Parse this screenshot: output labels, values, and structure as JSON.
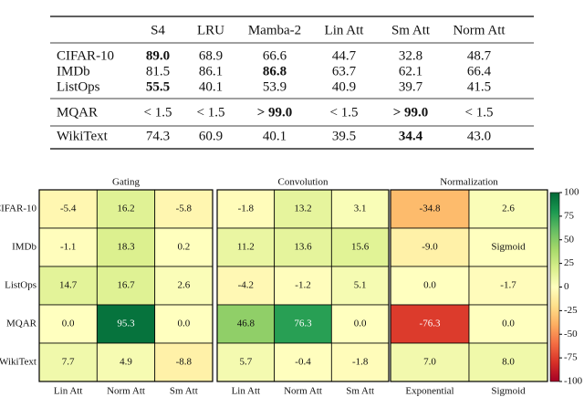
{
  "table": {
    "header": [
      "S4",
      "LRU",
      "Mamba-2",
      "Lin Att",
      "Sm Att",
      "Norm Att"
    ],
    "rows": [
      {
        "label": "CIFAR-10",
        "cells": [
          "89.0",
          "68.9",
          "66.6",
          "44.7",
          "32.8",
          "48.7"
        ]
      },
      {
        "label": "IMDb",
        "cells": [
          "81.5",
          "86.1",
          "86.8",
          "63.7",
          "62.1",
          "66.4"
        ]
      },
      {
        "label": "ListOps",
        "cells": [
          "55.5",
          "40.1",
          "53.9",
          "40.9",
          "39.7",
          "41.5"
        ]
      },
      {
        "label": "MQAR",
        "cells": [
          "< 1.5",
          "< 1.5",
          "> 99.0",
          "< 1.5",
          "> 99.0",
          "< 1.5"
        ]
      },
      {
        "label": "WikiText",
        "cells": [
          "74.3",
          "60.9",
          "40.1",
          "39.5",
          "34.4",
          "43.0"
        ]
      }
    ]
  },
  "chart_data": [
    {
      "type": "heatmap",
      "title": "Gating",
      "y_categories": [
        "CIFAR-10",
        "IMDb",
        "ListOps",
        "MQAR",
        "WikiText"
      ],
      "categories": [
        "Lin Att",
        "Norm Att",
        "Sm Att"
      ],
      "values": [
        [
          -5.4,
          16.2,
          -5.8
        ],
        [
          -1.1,
          18.3,
          0.2
        ],
        [
          14.7,
          16.7,
          2.6
        ],
        [
          0,
          95.3,
          0
        ],
        [
          7.7,
          4.9,
          -8.8
        ]
      ],
      "value_labels": [
        [
          "-5.4",
          "16.2",
          "-5.8"
        ],
        [
          "-1.1",
          "18.3",
          "0.2"
        ],
        [
          "14.7",
          "16.7",
          "2.6"
        ],
        [
          "0.0",
          "95.3",
          "0.0"
        ],
        [
          "7.7",
          "4.9",
          "-8.8"
        ]
      ]
    },
    {
      "type": "heatmap",
      "title": "Convolution",
      "categories": [
        "Lin Att",
        "Norm Att",
        "Sm Att"
      ],
      "values": [
        [
          -1.8,
          13.2,
          3.1
        ],
        [
          11.2,
          13.6,
          15.6
        ],
        [
          -4.2,
          -1.2,
          5.1
        ],
        [
          46.8,
          76.3,
          0
        ],
        [
          5.7,
          -0.4,
          -1.8
        ]
      ],
      "value_labels": [
        [
          "-1.8",
          "13.2",
          "3.1"
        ],
        [
          "11.2",
          "13.6",
          "15.6"
        ],
        [
          "-4.2",
          "-1.2",
          "5.1"
        ],
        [
          "46.8",
          "76.3",
          "0.0"
        ],
        [
          "5.7",
          "-0.4",
          "-1.8"
        ]
      ]
    },
    {
      "type": "heatmap",
      "title": "Normalization",
      "categories": [
        "Exponential",
        "Sigmoid"
      ],
      "values": [
        [
          -34.8,
          2.6
        ],
        [
          -9,
          null
        ],
        [
          0,
          -1.7
        ],
        [
          -76.3,
          0
        ],
        [
          7,
          8
        ]
      ],
      "value_labels": [
        [
          "-34.8",
          "2.6"
        ],
        [
          "-9.0",
          "Sigmoid"
        ],
        [
          "0.0",
          "-1.7"
        ],
        [
          "-76.3",
          "0.0"
        ],
        [
          "7.0",
          "8.0"
        ]
      ]
    }
  ],
  "colorbar": {
    "lim": [
      -100,
      100
    ],
    "ticks": [
      100,
      75,
      50,
      25,
      0,
      -25,
      -50,
      -75,
      -100
    ],
    "colors": [
      "#a50026",
      "#d73027",
      "#f46d43",
      "#fdae61",
      "#fee08b",
      "#ffffbf",
      "#d9ef8b",
      "#a6d96a",
      "#66bd63",
      "#1a9850",
      "#006837"
    ]
  }
}
